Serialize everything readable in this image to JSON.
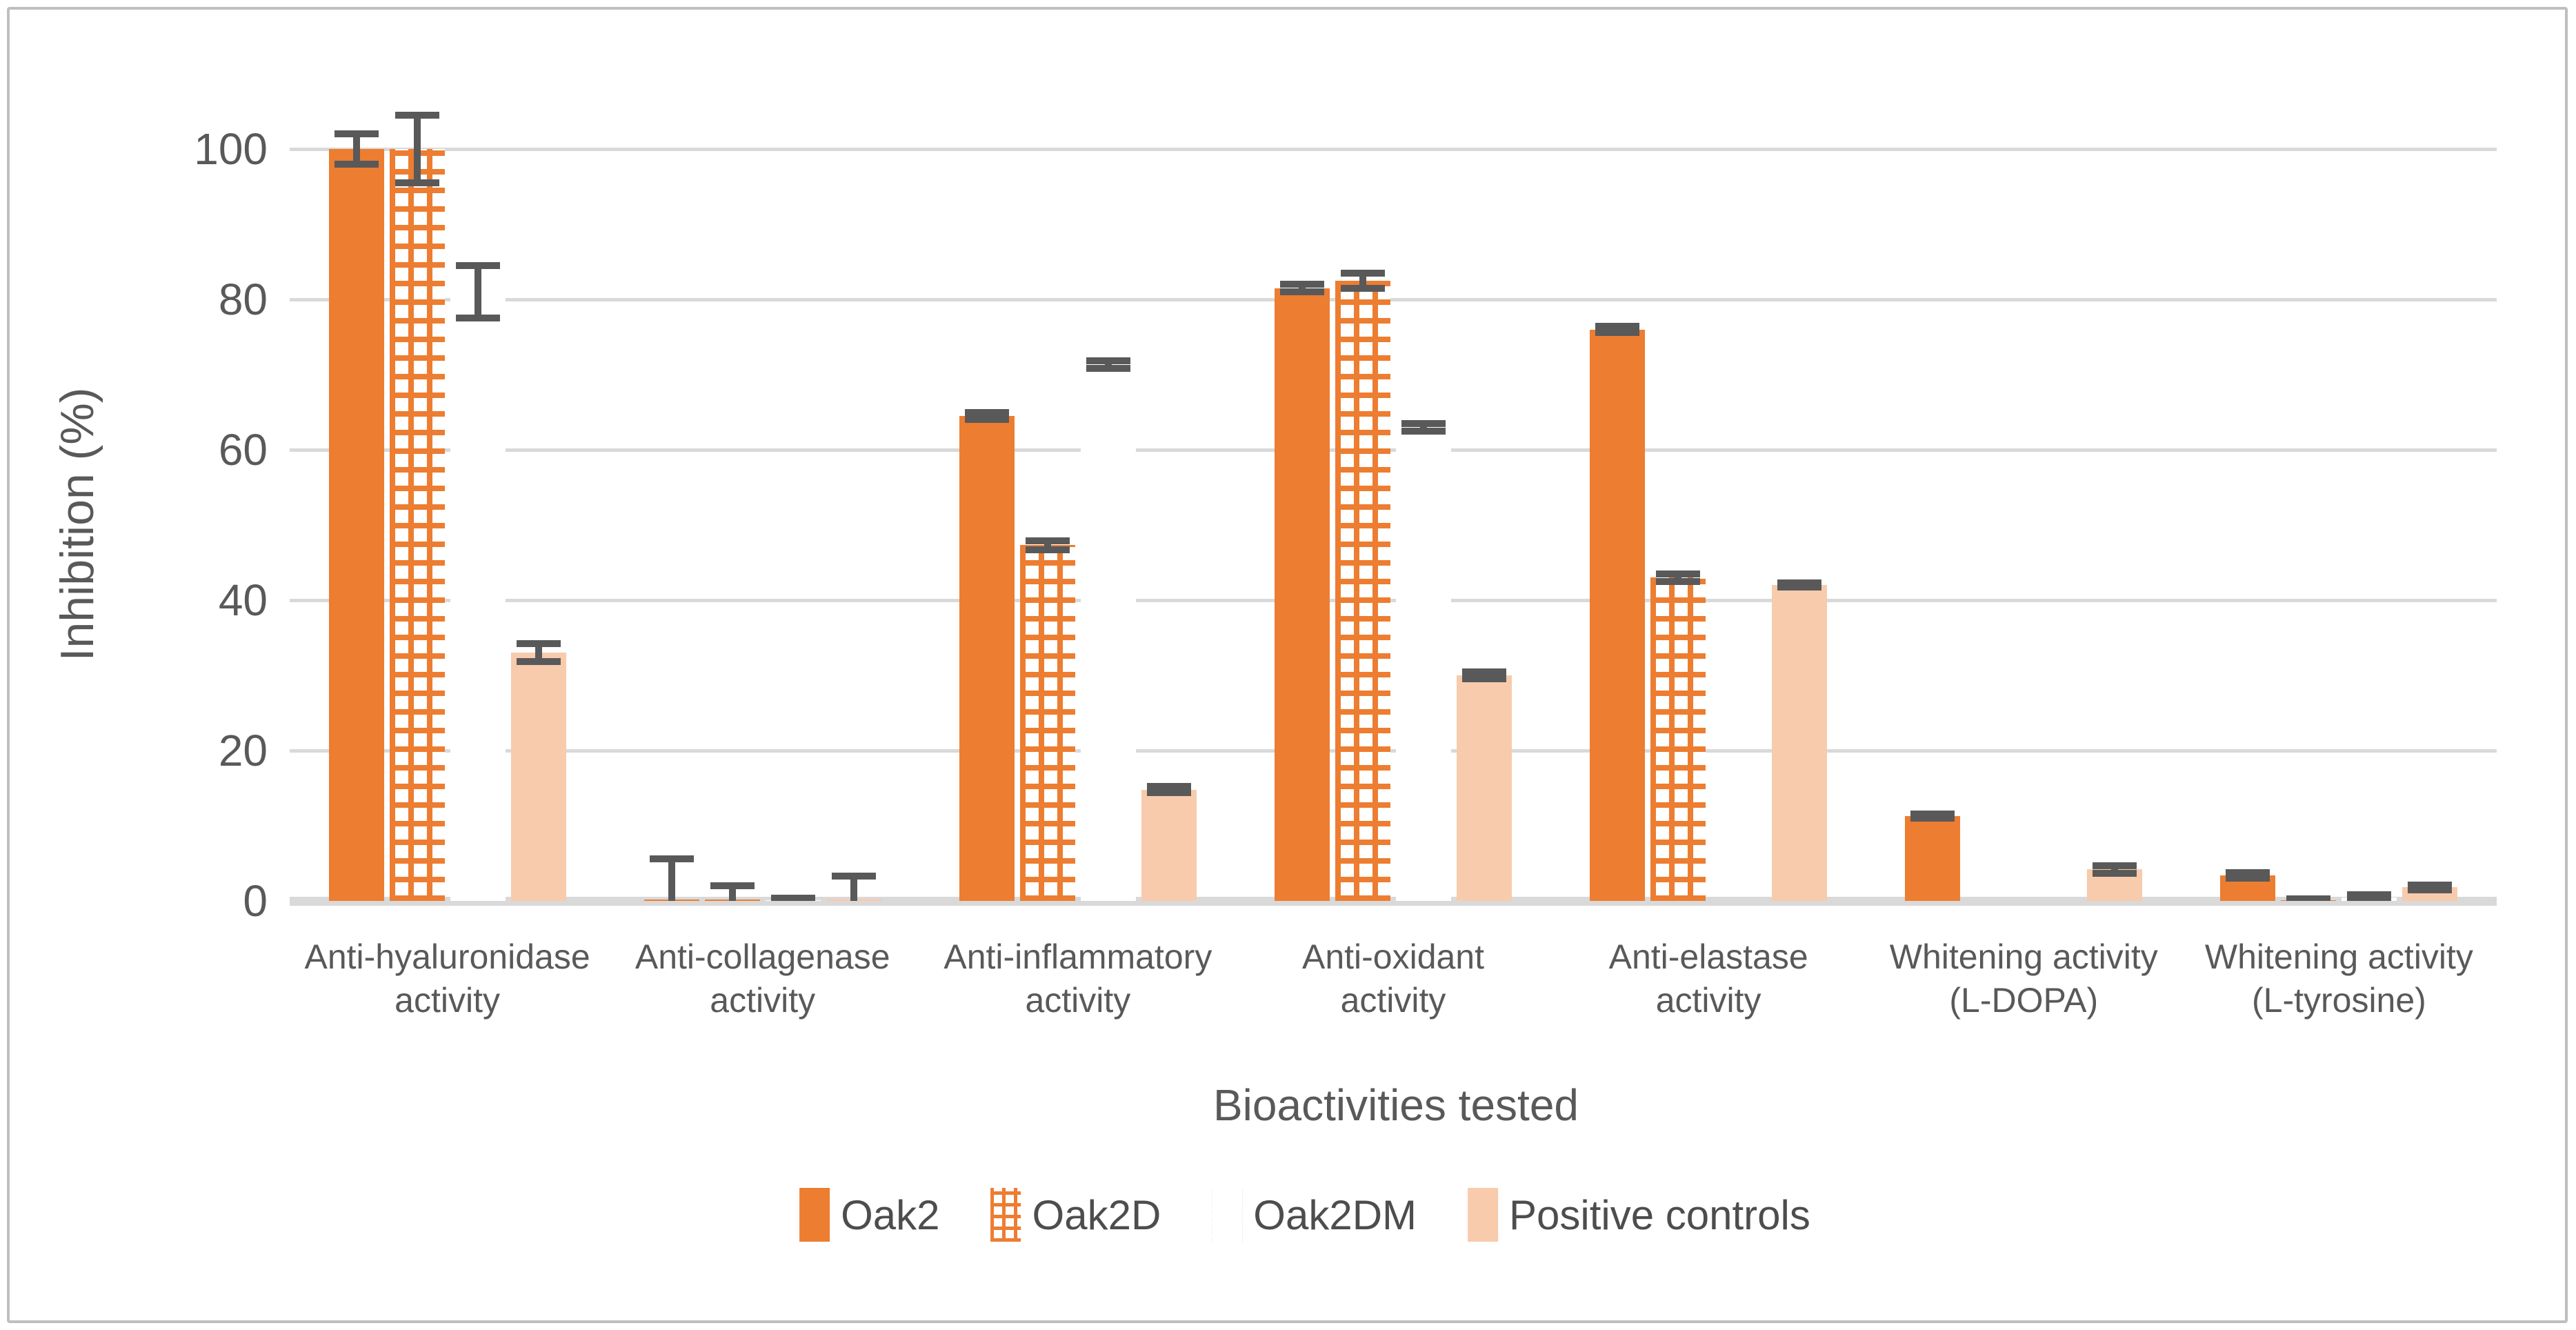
{
  "figure": {
    "background": "#FFFFFF",
    "border_color": "#BFBFBF"
  },
  "style": {
    "text_color": "#595959",
    "gridline_color": "#D9D9D9",
    "error_bar_color": "#595959",
    "accent_orange": "#ED7D31",
    "light_orange": "#F7CBAC"
  },
  "chart_data": {
    "type": "bar",
    "title": "",
    "xlabel": "Bioactivities tested",
    "ylabel": "Inhibition (%)",
    "ylim": [
      0,
      100
    ],
    "y_ticks": [
      0,
      20,
      40,
      60,
      80,
      100
    ],
    "grid": true,
    "legend_position": "bottom",
    "error_bars": true,
    "categories": [
      {
        "key": "anti-hyaluronidase",
        "label_lines": [
          "Anti-hyaluronidase",
          "activity"
        ]
      },
      {
        "key": "anti-collagenase",
        "label_lines": [
          "Anti-collagenase",
          "activity"
        ]
      },
      {
        "key": "anti-inflammatory",
        "label_lines": [
          "Anti-inflammatory",
          "activity"
        ]
      },
      {
        "key": "anti-oxidant",
        "label_lines": [
          "Anti-oxidant",
          "activity"
        ]
      },
      {
        "key": "anti-elastase",
        "label_lines": [
          "Anti-elastase",
          "activity"
        ]
      },
      {
        "key": "whitening-l-dopa",
        "label_lines": [
          "Whitening activity",
          "(L-DOPA)"
        ]
      },
      {
        "key": "whitening-l-tyrosine",
        "label_lines": [
          "Whitening activity",
          "(L-tyrosine)"
        ]
      }
    ],
    "series": [
      {
        "name": "Oak2",
        "key": "oak2",
        "pattern": "solid",
        "color": "#ED7D31",
        "values": [
          100,
          0.2,
          64.5,
          81.5,
          76,
          11.3,
          3.4
        ],
        "errors": [
          2,
          5.4,
          0.5,
          0.5,
          0.4,
          0.3,
          0.4
        ]
      },
      {
        "name": "Oak2D",
        "key": "oak2d",
        "pattern": "grid",
        "color": "#ED7D31",
        "values": [
          100,
          0.2,
          47.3,
          82.5,
          43,
          0,
          0.1
        ],
        "errors": [
          4.5,
          1.8,
          0.6,
          1,
          0.5,
          0,
          0.15
        ]
      },
      {
        "name": "Oak2DM",
        "key": "oak2dm",
        "pattern": "dots",
        "color": "#ED7D31",
        "values": [
          81,
          0.1,
          71.3,
          63,
          0,
          0,
          0.5
        ],
        "errors": [
          3.5,
          0.3,
          0.5,
          0.5,
          0,
          0,
          0.3
        ]
      },
      {
        "name": "Positive controls",
        "key": "positive",
        "pattern": "light",
        "color": "#F7CBAC",
        "values": [
          33,
          0.3,
          14.8,
          30,
          42,
          4.2,
          1.8
        ],
        "errors": [
          1.2,
          3,
          0.4,
          0.5,
          0.3,
          0.5,
          0.3
        ]
      }
    ]
  }
}
